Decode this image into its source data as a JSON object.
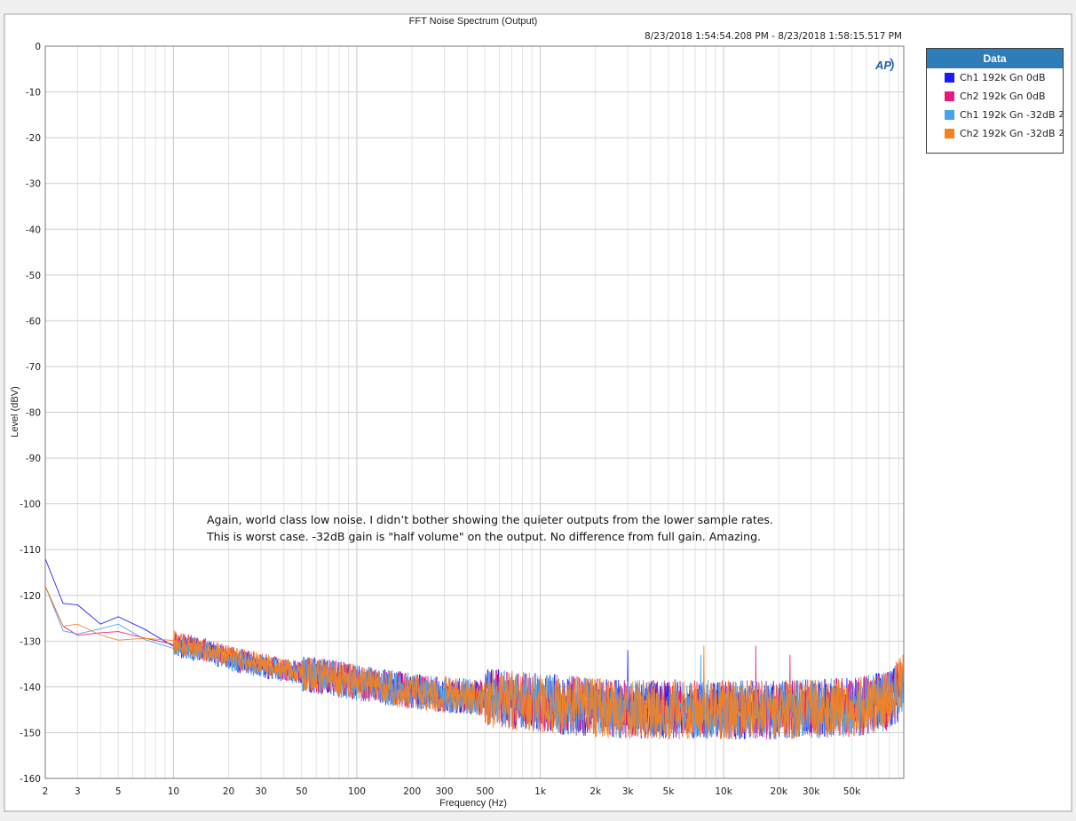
{
  "chart_data": {
    "type": "line",
    "title": "FFT Noise Spectrum (Output)",
    "timestamp": "8/23/2018 1:54:54.208 PM - 8/23/2018 1:58:15.517 PM",
    "xlabel": "Frequency (Hz)",
    "ylabel": "Level (dBV)",
    "x_scale": "log",
    "xlim": [
      2,
      96000
    ],
    "ylim": [
      -160,
      0
    ],
    "grid": true,
    "logo": "AP",
    "x_ticks": [
      {
        "value": 2,
        "label": "2"
      },
      {
        "value": 3,
        "label": "3"
      },
      {
        "value": 5,
        "label": "5"
      },
      {
        "value": 10,
        "label": "10"
      },
      {
        "value": 20,
        "label": "20"
      },
      {
        "value": 30,
        "label": "30"
      },
      {
        "value": 50,
        "label": "50"
      },
      {
        "value": 100,
        "label": "100"
      },
      {
        "value": 200,
        "label": "200"
      },
      {
        "value": 300,
        "label": "300"
      },
      {
        "value": 500,
        "label": "500"
      },
      {
        "value": 1000,
        "label": "1k"
      },
      {
        "value": 2000,
        "label": "2k"
      },
      {
        "value": 3000,
        "label": "3k"
      },
      {
        "value": 5000,
        "label": "5k"
      },
      {
        "value": 10000,
        "label": "10k"
      },
      {
        "value": 20000,
        "label": "20k"
      },
      {
        "value": 30000,
        "label": "30k"
      },
      {
        "value": 50000,
        "label": "50k"
      }
    ],
    "y_ticks": [
      0,
      -10,
      -20,
      -30,
      -40,
      -50,
      -60,
      -70,
      -80,
      -90,
      -100,
      -110,
      -120,
      -130,
      -140,
      -150,
      -160
    ],
    "legend": {
      "title": "Data",
      "placement": "right"
    },
    "annotation": [
      "Again, world class low noise. I didn’t bother showing the quieter outputs from the lower sample rates.",
      "This is worst case. -32dB gain is \"half volume\" on the output. No difference from full gain. Amazing."
    ],
    "series": [
      {
        "name": "Ch1 192k Gn 0dB",
        "suffix": "",
        "color": "#1a1aff",
        "x": [
          2,
          2.5,
          3,
          4,
          5,
          7,
          10,
          15,
          20,
          30,
          50,
          100,
          200,
          500,
          1000,
          2000,
          3000,
          5000,
          10000,
          20000,
          50000,
          80000,
          96000
        ],
        "y": [
          -112,
          -121,
          -122,
          -126,
          -124,
          -128,
          -131,
          -132,
          -134,
          -135.5,
          -137,
          -139,
          -141,
          -142.5,
          -143.5,
          -144.5,
          -145,
          -145,
          -145,
          -145,
          -144.5,
          -143,
          -141
        ],
        "peaks": [
          {
            "x": 3000,
            "y": -132
          }
        ]
      },
      {
        "name": "Ch2 192k Gn 0dB",
        "suffix": "",
        "color": "#e8197d",
        "x": [
          2,
          2.5,
          3,
          4,
          5,
          7,
          10,
          15,
          20,
          30,
          50,
          100,
          200,
          500,
          1000,
          2000,
          3000,
          5000,
          10000,
          20000,
          50000,
          80000,
          96000
        ],
        "y": [
          -118,
          -126,
          -128,
          -128,
          -128,
          -129,
          -130,
          -132,
          -133.5,
          -135,
          -137,
          -139,
          -141,
          -142.5,
          -143.5,
          -144.5,
          -145,
          -145,
          -145,
          -145,
          -144.5,
          -143,
          -140
        ],
        "peaks": [
          {
            "x": 15000,
            "y": -131
          },
          {
            "x": 23000,
            "y": -133
          }
        ]
      },
      {
        "name": "Ch1 192k Gn -32dB",
        "suffix": "2",
        "color": "#45a2f0",
        "x": [
          2,
          2.5,
          3,
          4,
          5,
          7,
          10,
          15,
          20,
          30,
          50,
          100,
          200,
          500,
          1000,
          2000,
          3000,
          5000,
          10000,
          20000,
          50000,
          80000,
          96000
        ],
        "y": [
          -118,
          -127,
          -129,
          -128,
          -127,
          -130,
          -131,
          -132.5,
          -134,
          -135.5,
          -137,
          -139,
          -141,
          -142.5,
          -143.5,
          -144.5,
          -145,
          -145,
          -145,
          -145,
          -144.5,
          -143,
          -139
        ],
        "peaks": [
          {
            "x": 7500,
            "y": -133
          }
        ]
      },
      {
        "name": "Ch2 192k Gn -32dB",
        "suffix": "2",
        "color": "#f5821f",
        "x": [
          2,
          2.5,
          3,
          4,
          5,
          7,
          10,
          15,
          20,
          30,
          50,
          100,
          200,
          500,
          1000,
          2000,
          3000,
          5000,
          10000,
          20000,
          50000,
          80000,
          96000
        ],
        "y": [
          -118,
          -126,
          -127,
          -128,
          -129.5,
          -129,
          -130,
          -132,
          -133.5,
          -135,
          -137,
          -139,
          -141,
          -142.5,
          -143.5,
          -144.5,
          -145,
          -145,
          -145,
          -145,
          -144.5,
          -143,
          -138
        ],
        "peaks": [
          {
            "x": 7800,
            "y": -131
          }
        ]
      }
    ]
  }
}
